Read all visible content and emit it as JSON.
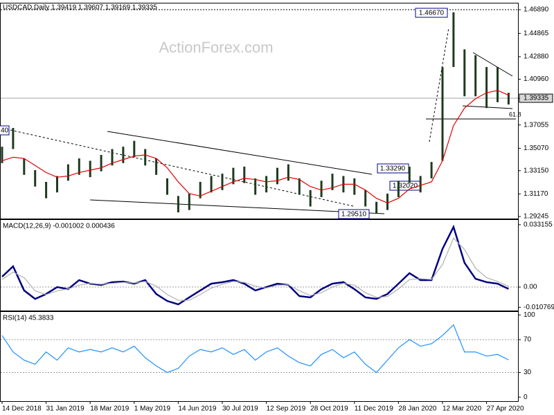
{
  "chart_data": [
    {
      "type": "ohlc",
      "title": "USDCAD,Daily  1.39419 1.39607 1.39169 1.39335",
      "watermark": "ActionForex.com",
      "color": "#1e3a1e",
      "ma_color": "#e00000",
      "high": [
        1.352,
        1.368,
        1.342,
        1.332,
        1.322,
        1.327,
        1.337,
        1.342,
        1.34,
        1.345,
        1.35,
        1.352,
        1.357,
        1.35,
        1.342,
        1.325,
        1.31,
        1.312,
        1.322,
        1.327,
        1.329,
        1.334,
        1.335,
        1.325,
        1.327,
        1.334,
        1.337,
        1.325,
        1.315,
        1.323,
        1.329,
        1.327,
        1.325,
        1.315,
        1.305,
        1.312,
        1.323,
        1.335,
        1.327,
        1.339,
        1.42,
        1.4667,
        1.435,
        1.43,
        1.42,
        1.42,
        1.398
      ],
      "low": [
        1.338,
        1.35,
        1.328,
        1.318,
        1.308,
        1.313,
        1.323,
        1.328,
        1.326,
        1.331,
        1.336,
        1.338,
        1.343,
        1.336,
        1.328,
        1.311,
        1.296,
        1.298,
        1.308,
        1.313,
        1.315,
        1.32,
        1.321,
        1.311,
        1.313,
        1.32,
        1.323,
        1.311,
        1.301,
        1.309,
        1.315,
        1.313,
        1.311,
        1.301,
        1.2951,
        1.298,
        1.309,
        1.321,
        1.313,
        1.325,
        1.34,
        1.42,
        1.395,
        1.395,
        1.385,
        1.39,
        1.388
      ],
      "ma": [
        1.34,
        1.343,
        1.342,
        1.336,
        1.33,
        1.326,
        1.327,
        1.33,
        1.332,
        1.334,
        1.338,
        1.341,
        1.344,
        1.345,
        1.342,
        1.334,
        1.322,
        1.312,
        1.31,
        1.314,
        1.318,
        1.322,
        1.325,
        1.324,
        1.322,
        1.323,
        1.326,
        1.324,
        1.318,
        1.315,
        1.317,
        1.32,
        1.32,
        1.315,
        1.308,
        1.304,
        1.308,
        1.316,
        1.319,
        1.322,
        1.34,
        1.37,
        1.385,
        1.393,
        1.398,
        1.4,
        1.396
      ],
      "ylim": [
        1.2907,
        1.4742
      ],
      "yticks": [
        {
          "value": 1.4689,
          "label": "1.46890"
        },
        1.44865,
        {
          "value": 1.4288,
          "label": "1.42880"
        },
        {
          "value": 1.4096,
          "label": "1.40960"
        },
        1.39335,
        1.37055,
        {
          "value": 1.3507,
          "label": "1.35070"
        },
        {
          "value": 1.3315,
          "label": "1.33150"
        },
        {
          "value": 1.3117,
          "label": "1.31170"
        },
        1.29245
      ],
      "highlight_tick": 4,
      "annotations": [
        "1.46670",
        "1.33290",
        "1.32020",
        "1.29510",
        "61.8",
        "40"
      ]
    },
    {
      "type": "line",
      "title": "MACD(12,26,9) -0.001002 0.000436",
      "series": [
        {
          "color": "#000080",
          "values": [
            0.0055,
            0.011,
            -0.0018,
            -0.0063,
            -0.0037,
            0,
            -0.0011,
            0.0037,
            0.0018,
            0.0011,
            0.0026,
            0.0029,
            0.0018,
            0.0037,
            -0.0037,
            -0.0074,
            -0.0092,
            -0.0055,
            -0.0018,
            0.0018,
            0.0026,
            0.0037,
            0.0018,
            -0.0018,
            0,
            0.0018,
            0.0011,
            -0.0048,
            -0.0055,
            -0.0011,
            0.0018,
            0.0026,
            -0.0011,
            -0.0055,
            -0.0063,
            -0.0037,
            0.0018,
            0.0074,
            0.0037,
            0.0037,
            0.0203,
            0.032,
            0.0129,
            0.0044,
            0.0026,
            0.0018,
            -0.001
          ]
        },
        {
          "color": "#b0b0b0",
          "values": [
            0.004,
            0.008,
            0.005,
            -0.002,
            -0.004,
            -0.002,
            -0.001,
            0.001,
            0.002,
            0.0015,
            0.002,
            0.0025,
            0.0022,
            0.003,
            0.0005,
            -0.004,
            -0.007,
            -0.007,
            -0.004,
            -0.0005,
            0.0015,
            0.003,
            0.0025,
            0.0005,
            -0.0005,
            0.001,
            0.0012,
            -0.002,
            -0.0045,
            -0.003,
            0,
            0.002,
            0.001,
            -0.003,
            -0.0055,
            -0.005,
            -0.001,
            0.004,
            0.0045,
            0.004,
            0.012,
            0.026,
            0.02,
            0.01,
            0.005,
            0.003,
            0.0004
          ]
        }
      ],
      "ylim": [
        -0.0125,
        0.0357
      ],
      "yticks": [
        0.033155,
        {
          "value": 0,
          "label": "0.00"
        },
        -0.010769
      ]
    },
    {
      "type": "line",
      "title": "RSI(14) 45.3833",
      "series": [
        {
          "color": "#1e90ff",
          "values": [
            75,
            55,
            45,
            40,
            55,
            45,
            60,
            55,
            58,
            55,
            60,
            55,
            62,
            48,
            38,
            30,
            35,
            50,
            58,
            55,
            60,
            52,
            58,
            45,
            55,
            60,
            50,
            42,
            38,
            52,
            58,
            48,
            55,
            40,
            30,
            45,
            60,
            70,
            62,
            65,
            75,
            88,
            55,
            55,
            50,
            52,
            45.3833
          ]
        }
      ],
      "ylim": [
        -4.9,
        103.7
      ],
      "yticks": [
        100,
        70,
        30,
        0
      ],
      "categories": [
        "14 Dec 2018",
        null,
        null,
        null,
        "31 Jan 2019",
        null,
        null,
        null,
        "18 Mar 2019",
        null,
        null,
        null,
        "1 May 2019",
        null,
        null,
        null,
        "14 Jun 2019",
        null,
        null,
        null,
        "30 Jul 2019",
        null,
        null,
        null,
        "12 Sep 2019",
        null,
        null,
        null,
        "28 Oct 2019",
        null,
        null,
        null,
        "11 Dec 2019",
        null,
        null,
        null,
        "28 Jan 2020",
        null,
        null,
        null,
        "12 Mar 2020",
        null,
        null,
        null,
        "27 Apr 2020",
        null,
        null
      ]
    }
  ]
}
